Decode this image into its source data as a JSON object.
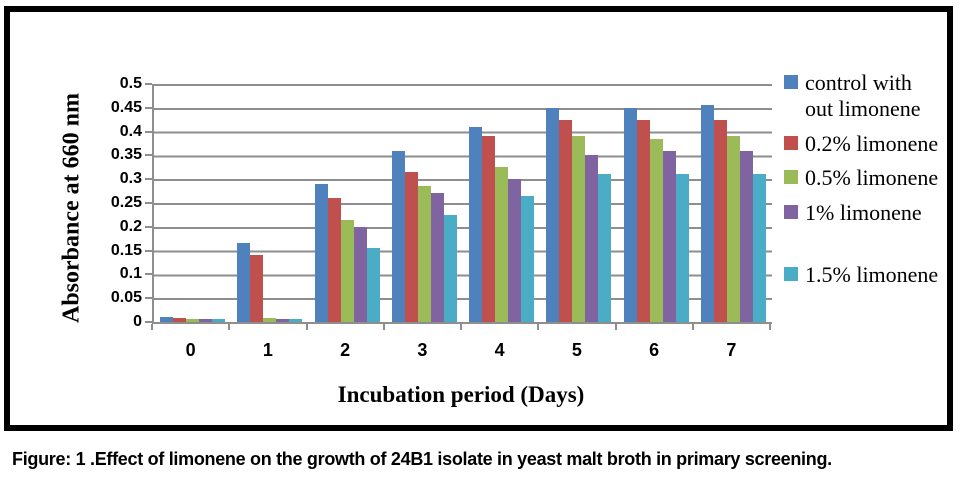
{
  "figure": {
    "caption": "Figure: 1 .Effect of limonene on the growth of 24B1 isolate in yeast malt broth in primary screening."
  },
  "chart_data": {
    "type": "bar",
    "title": "",
    "xlabel": "Incubation period (Days)",
    "ylabel": "Absorbance at 660 nm",
    "categories": [
      "0",
      "1",
      "2",
      "3",
      "4",
      "5",
      "6",
      "7"
    ],
    "ylim": [
      0,
      0.5
    ],
    "ytick_step": 0.05,
    "ytick_labels": [
      "0.5",
      "0.45",
      "0.4",
      "0.35",
      "0.3",
      "0.25",
      "0.2",
      "0.15",
      "0.1",
      "0.05",
      "0"
    ],
    "grid": true,
    "legend_position": "right",
    "gridline_color": "#8e8e8e",
    "series": [
      {
        "name": "control with out limonene",
        "color": "#4F81BD",
        "values": [
          0.01,
          0.165,
          0.29,
          0.36,
          0.41,
          0.45,
          0.45,
          0.455
        ]
      },
      {
        "name": "0.2% limonene",
        "color": "#C0504D",
        "values": [
          0.008,
          0.14,
          0.26,
          0.315,
          0.39,
          0.425,
          0.425,
          0.425
        ]
      },
      {
        "name": "0.5% limonene",
        "color": "#9BBB59",
        "values": [
          0.006,
          0.008,
          0.215,
          0.285,
          0.325,
          0.39,
          0.385,
          0.39
        ]
      },
      {
        "name": "1% limonene",
        "color": "#8064A2",
        "values": [
          0.007,
          0.006,
          0.2,
          0.27,
          0.3,
          0.35,
          0.36,
          0.36
        ]
      },
      {
        "name": "1.5% limonene",
        "color": "#4BACC6",
        "values": [
          0.006,
          0.007,
          0.155,
          0.225,
          0.265,
          0.31,
          0.31,
          0.31
        ]
      }
    ]
  }
}
